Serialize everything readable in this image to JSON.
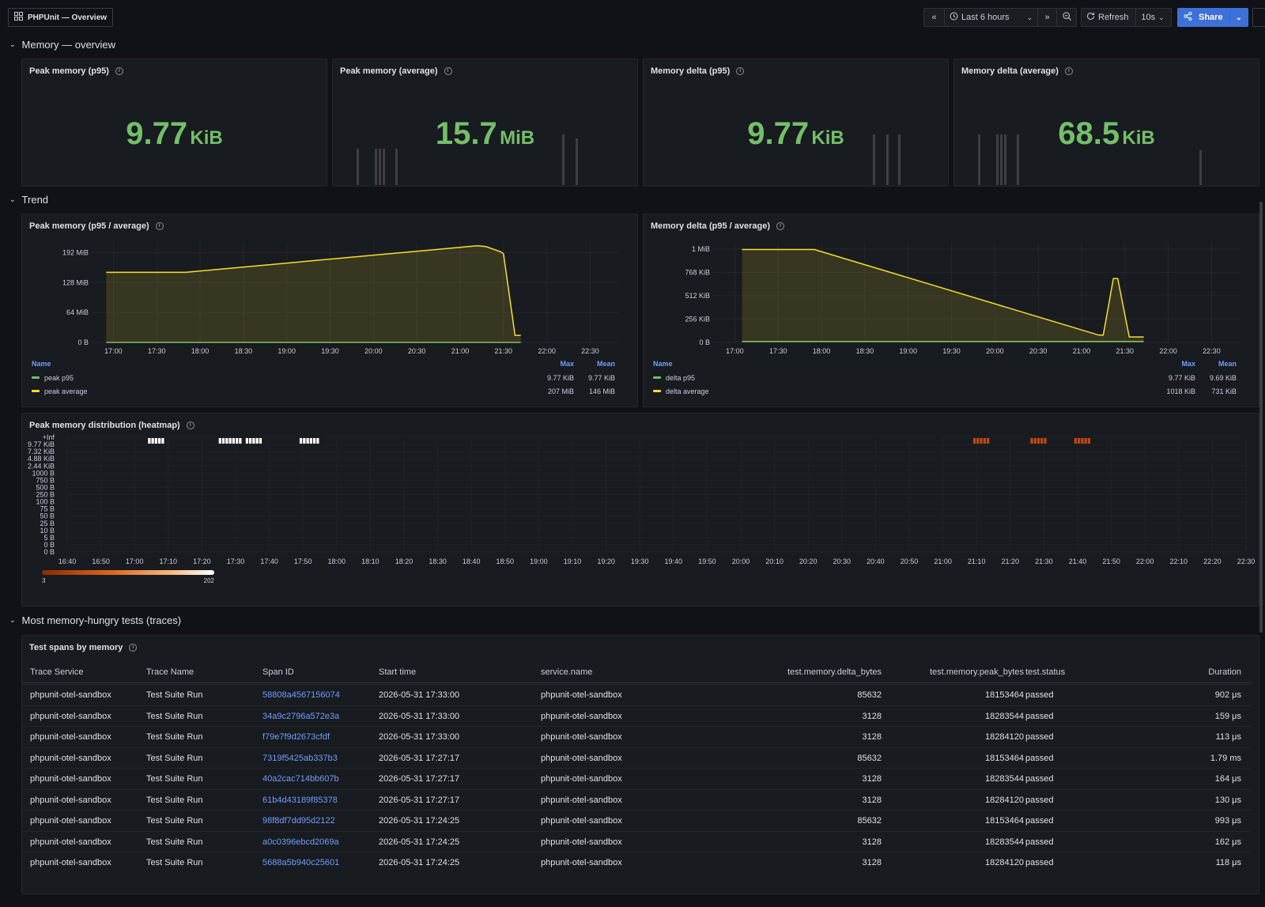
{
  "topbar": {
    "breadcrumb": "PHPUnit — Overview",
    "time_range": "Last 6 hours",
    "refresh_label": "Refresh",
    "refresh_interval": "10s",
    "share_label": "Share"
  },
  "rows": {
    "overview": "Memory — overview",
    "trend": "Trend",
    "tests": "Most memory-hungry tests (traces)"
  },
  "stats": [
    {
      "title": "Peak memory (p95)",
      "value": "9.77",
      "unit": "KiB"
    },
    {
      "title": "Peak memory (average)",
      "value": "15.7",
      "unit": "MiB"
    },
    {
      "title": "Memory delta (p95)",
      "value": "9.77",
      "unit": "KiB"
    },
    {
      "title": "Memory delta (average)",
      "value": "68.5",
      "unit": "KiB"
    }
  ],
  "colors": {
    "green": "#73bf69",
    "yellow": "#fade2a",
    "accent": "#3d71d9",
    "link": "#6e9fff"
  },
  "chart_data": [
    {
      "type": "area",
      "title": "Peak memory (p95 / average)",
      "x_ticks": [
        "17:00",
        "17:30",
        "18:00",
        "18:30",
        "19:00",
        "19:30",
        "20:00",
        "20:30",
        "21:00",
        "21:30",
        "22:00",
        "22:30"
      ],
      "y_ticks": [
        "192 MiB",
        "128 MiB",
        "64 MiB",
        "0 B"
      ],
      "ylim": [
        0,
        215
      ],
      "y_unit": "MiB",
      "grid": true,
      "series": [
        {
          "name": "peak p95",
          "color": "#73bf69",
          "x": [
            "16:55",
            "21:42"
          ],
          "y": [
            0.0095,
            0.0095
          ]
        },
        {
          "name": "peak average",
          "color": "#fade2a",
          "x": [
            "16:55",
            "17:50",
            "21:12",
            "21:18",
            "21:28",
            "21:30",
            "21:38",
            "21:42"
          ],
          "y": [
            150,
            150,
            207,
            205,
            194,
            190,
            15,
            15
          ]
        }
      ],
      "legend": {
        "columns": [
          "Name",
          "Max",
          "Mean"
        ],
        "rows": [
          {
            "name": "peak p95",
            "max": "9.77 KiB",
            "mean": "9.77 KiB"
          },
          {
            "name": "peak average",
            "max": "207 MiB",
            "mean": "146 MiB"
          }
        ]
      }
    },
    {
      "type": "area",
      "title": "Memory delta (p95 / average)",
      "x_ticks": [
        "17:00",
        "17:30",
        "18:00",
        "18:30",
        "19:00",
        "19:30",
        "20:00",
        "20:30",
        "21:00",
        "21:30",
        "22:00",
        "22:30"
      ],
      "y_ticks": [
        "1 MiB",
        "768 KiB",
        "512 KiB",
        "256 KiB",
        "0 B"
      ],
      "ylim": [
        0,
        1100
      ],
      "y_unit": "KiB",
      "grid": true,
      "series": [
        {
          "name": "delta p95",
          "color": "#73bf69",
          "x": [
            "17:05",
            "21:43"
          ],
          "y": [
            9.77,
            9.77
          ]
        },
        {
          "name": "delta average",
          "color": "#fade2a",
          "x": [
            "17:05",
            "17:55",
            "21:12",
            "21:15",
            "21:22",
            "21:25",
            "21:33",
            "21:43"
          ],
          "y": [
            1018,
            1018,
            80,
            80,
            700,
            700,
            60,
            60
          ]
        }
      ],
      "legend": {
        "columns": [
          "Name",
          "Max",
          "Mean"
        ],
        "rows": [
          {
            "name": "delta p95",
            "max": "9.77 KiB",
            "mean": "9.69 KiB"
          },
          {
            "name": "delta average",
            "max": "1018 KiB",
            "mean": "731 KiB"
          }
        ]
      }
    },
    {
      "type": "heatmap",
      "title": "Peak memory distribution (heatmap)",
      "y_buckets": [
        "+Inf",
        "9.77 KiB",
        "7.32 KiB",
        "4.88 KiB",
        "2.44 KiB",
        "1000 B",
        "750 B",
        "500 B",
        "250 B",
        "100 B",
        "75 B",
        "50 B",
        "25 B",
        "10 B",
        "5 B",
        "0 B",
        "0 B"
      ],
      "x_ticks": [
        "16:40",
        "16:50",
        "17:00",
        "17:10",
        "17:20",
        "17:30",
        "17:40",
        "17:50",
        "18:00",
        "18:10",
        "18:20",
        "18:30",
        "18:40",
        "18:50",
        "19:00",
        "19:10",
        "19:20",
        "19:30",
        "19:40",
        "19:50",
        "20:00",
        "20:10",
        "20:20",
        "20:30",
        "20:40",
        "20:50",
        "21:00",
        "21:10",
        "21:20",
        "21:30",
        "21:40",
        "21:50",
        "22:00",
        "22:10",
        "22:20",
        "22:30"
      ],
      "cells": [
        {
          "from": "17:04",
          "to": "17:09",
          "bucket": "+Inf",
          "count": 202
        },
        {
          "from": "17:25",
          "to": "17:32",
          "bucket": "+Inf",
          "count": 202
        },
        {
          "from": "17:33",
          "to": "17:38",
          "bucket": "+Inf",
          "count": 202
        },
        {
          "from": "17:49",
          "to": "17:55",
          "bucket": "+Inf",
          "count": 202
        },
        {
          "from": "21:09",
          "to": "21:14",
          "bucket": "+Inf",
          "count": 3
        },
        {
          "from": "21:26",
          "to": "21:31",
          "bucket": "+Inf",
          "count": 3
        },
        {
          "from": "21:39",
          "to": "21:44",
          "bucket": "+Inf",
          "count": 3
        }
      ],
      "color_scale": {
        "min": "3",
        "max": "202"
      }
    }
  ],
  "table": {
    "title": "Test spans by memory",
    "columns": [
      "Trace Service",
      "Trace Name",
      "Span ID",
      "Start time",
      "service.name",
      "test.memory.delta_bytes",
      "test.memory.peak_bytes",
      "test.status",
      "Duration"
    ],
    "rows": [
      [
        "phpunit-otel-sandbox",
        "Test Suite Run",
        "58808a4567156074",
        "2026-05-31 17:33:00",
        "phpunit-otel-sandbox",
        "85632",
        "18153464",
        "passed",
        "902 μs"
      ],
      [
        "phpunit-otel-sandbox",
        "Test Suite Run",
        "34a9c2796a572e3a",
        "2026-05-31 17:33:00",
        "phpunit-otel-sandbox",
        "3128",
        "18283544",
        "passed",
        "159 μs"
      ],
      [
        "phpunit-otel-sandbox",
        "Test Suite Run",
        "f79e7f9d2673cfdf",
        "2026-05-31 17:33:00",
        "phpunit-otel-sandbox",
        "3128",
        "18284120",
        "passed",
        "113 μs"
      ],
      [
        "phpunit-otel-sandbox",
        "Test Suite Run",
        "7319f5425ab337b3",
        "2026-05-31 17:27:17",
        "phpunit-otel-sandbox",
        "85632",
        "18153464",
        "passed",
        "1.79 ms"
      ],
      [
        "phpunit-otel-sandbox",
        "Test Suite Run",
        "40a2cac714bb607b",
        "2026-05-31 17:27:17",
        "phpunit-otel-sandbox",
        "3128",
        "18283544",
        "passed",
        "164 μs"
      ],
      [
        "phpunit-otel-sandbox",
        "Test Suite Run",
        "61b4d43189f85378",
        "2026-05-31 17:27:17",
        "phpunit-otel-sandbox",
        "3128",
        "18284120",
        "passed",
        "130 μs"
      ],
      [
        "phpunit-otel-sandbox",
        "Test Suite Run",
        "98f8df7dd95d2122",
        "2026-05-31 17:24:25",
        "phpunit-otel-sandbox",
        "85632",
        "18153464",
        "passed",
        "993 μs"
      ],
      [
        "phpunit-otel-sandbox",
        "Test Suite Run",
        "a0c0396ebcd2069a",
        "2026-05-31 17:24:25",
        "phpunit-otel-sandbox",
        "3128",
        "18283544",
        "passed",
        "162 μs"
      ],
      [
        "phpunit-otel-sandbox",
        "Test Suite Run",
        "5688a5b940c25601",
        "2026-05-31 17:24:25",
        "phpunit-otel-sandbox",
        "3128",
        "18284120",
        "passed",
        "118 μs"
      ]
    ]
  }
}
